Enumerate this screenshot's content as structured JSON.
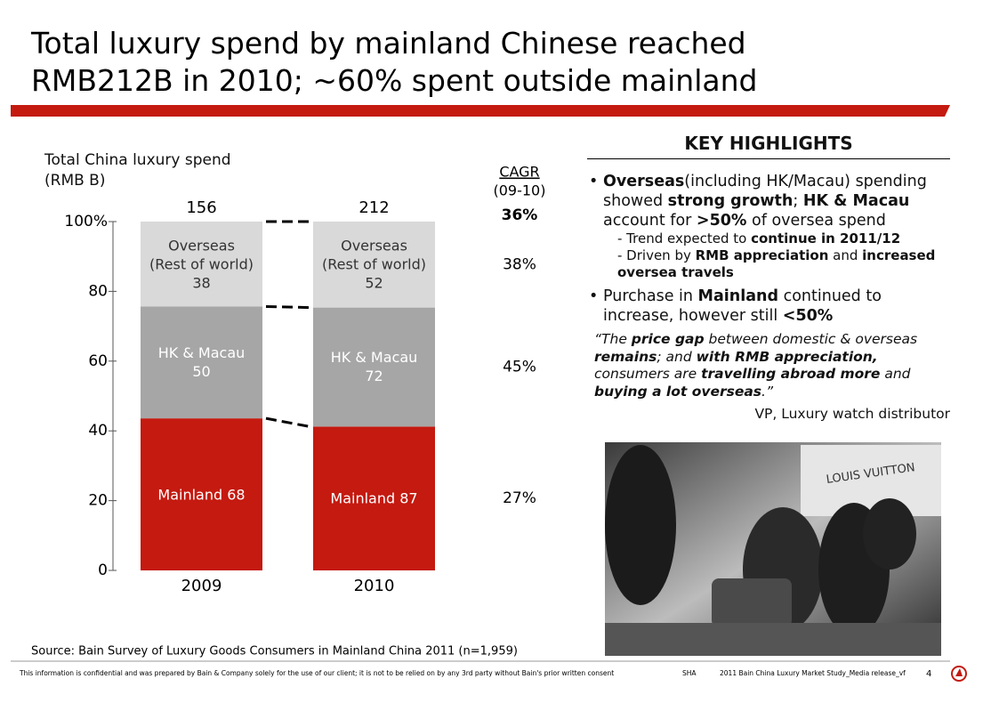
{
  "title": "Total luxury spend by mainland Chinese reached\nRMB212B in 2010; ~60% spent outside mainland",
  "chart_data": {
    "type": "bar",
    "stacking": "percent",
    "axis_label": "Total China luxury spend\n(RMB B)",
    "categories": [
      "2009",
      "2010"
    ],
    "totals": [
      156,
      212
    ],
    "ylim": [
      0,
      100
    ],
    "yticks": [
      0,
      20,
      40,
      60,
      80,
      {
        "value": 100,
        "label": "100%"
      }
    ],
    "series": [
      {
        "name": "Mainland",
        "color": "#c41a10",
        "label_color": "#ffffff",
        "label_layout": "inline",
        "values": [
          68,
          87
        ],
        "cagr": 27,
        "cagr_label": "27%"
      },
      {
        "name": "HK & Macau",
        "color": "#a6a6a6",
        "label_color": "#ffffff",
        "label_layout": "stacked",
        "values": [
          50,
          72
        ],
        "cagr": 45,
        "cagr_label": "45%"
      },
      {
        "name": "Overseas\n(Rest of world)",
        "color": "#d9d9d9",
        "label_color": "#333333",
        "label_layout": "stacked",
        "values": [
          38,
          52
        ],
        "cagr": 38,
        "cagr_label": "38%"
      }
    ],
    "cagr_title": "CAGR",
    "cagr_period": "(09-10)",
    "cagr_total": {
      "value": 36,
      "label": "36%"
    }
  },
  "source": "Source: Bain Survey of Luxury Goods Consumers in Mainland China 2011 (n=1,959)",
  "highlights": {
    "heading": "KEY HIGHLIGHTS",
    "bullets": [
      {
        "runs": [
          {
            "text": "Overseas",
            "bold": true
          },
          {
            "text": "(including HK/Macau) spending showed "
          },
          {
            "text": "strong growth",
            "bold": true
          },
          {
            "text": "; "
          },
          {
            "text": "HK & Macau",
            "bold": true
          },
          {
            "text": " account for "
          },
          {
            "text": ">50%",
            "bold": true
          },
          {
            "text": " of oversea spend"
          }
        ],
        "subs": [
          [
            {
              "text": "- Trend expected to "
            },
            {
              "text": "continue in 2011/12",
              "bold": true
            }
          ],
          [
            {
              "text": "- Driven by "
            },
            {
              "text": "RMB appreciation",
              "bold": true
            },
            {
              "text": " and "
            },
            {
              "text": "increased oversea travels",
              "bold": true
            }
          ]
        ]
      },
      {
        "runs": [
          {
            "text": "Purchase in "
          },
          {
            "text": "Mainland",
            "bold": true
          },
          {
            "text": " continued to increase, however still "
          },
          {
            "text": "<50%",
            "bold": true
          }
        ],
        "subs": []
      }
    ],
    "quote": [
      {
        "text": "“The "
      },
      {
        "text": "price gap",
        "bold": true
      },
      {
        "text": " between domestic & overseas "
      },
      {
        "text": "remains",
        "bold": true
      },
      {
        "text": "; and "
      },
      {
        "text": "with RMB appreciation,",
        "bold": true
      },
      {
        "text": " consumers are "
      },
      {
        "text": "travelling abroad more",
        "bold": true
      },
      {
        "text": " and "
      },
      {
        "text": "buying a lot overseas",
        "bold": true
      },
      {
        "text": ".”"
      }
    ],
    "attribution": "VP, Luxury watch distributor",
    "photo_sign": "LOUIS VUITTON"
  },
  "footer": {
    "disclaimer": "This information is confidential and was prepared by Bain & Company solely for the use of our client; it is not to be relied on by any 3rd party without Bain's prior written consent",
    "office": "SHA",
    "doc": "2011 Bain China Luxury Market Study_Media release_vf",
    "page": "4"
  }
}
